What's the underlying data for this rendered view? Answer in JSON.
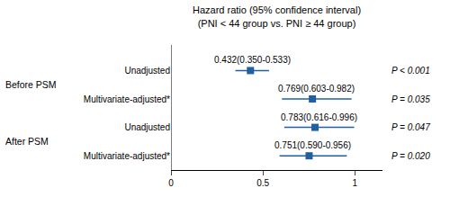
{
  "chart_data": {
    "type": "forest",
    "title": "Hazard ratio (95% confidence interval)",
    "subtitle": "(PNI < 44 group vs. PNI ≥ 44 group)",
    "categories": [
      "Unadjusted",
      "Multivariate-adjusted*",
      "Unadjusted",
      "Multivariate-adjusted*"
    ],
    "values": [
      0.432,
      0.769,
      0.783,
      0.751
    ],
    "ci_low": [
      0.35,
      0.603,
      0.616,
      0.59
    ],
    "ci_high": [
      0.533,
      0.982,
      0.996,
      0.956
    ],
    "value_labels": [
      "0.432(0.350-0.533)",
      "0.769(0.603-0.982)",
      "0.783(0.616-0.996)",
      "0.751(0.590-0.956)"
    ],
    "p_labels": [
      "P < 0.001",
      "P = 0.035",
      "P = 0.047",
      "P = 0.020"
    ],
    "group_labels": [
      {
        "text": "Before PSM",
        "row_indices": [
          0,
          1
        ]
      },
      {
        "text": "After PSM",
        "row_indices": [
          2,
          3
        ]
      }
    ],
    "reference_x": 0,
    "xlim": [
      0,
      1.15
    ],
    "xticks": [
      0,
      0.5,
      1
    ],
    "color": "#2060a0",
    "marker": "square",
    "grid": false
  }
}
